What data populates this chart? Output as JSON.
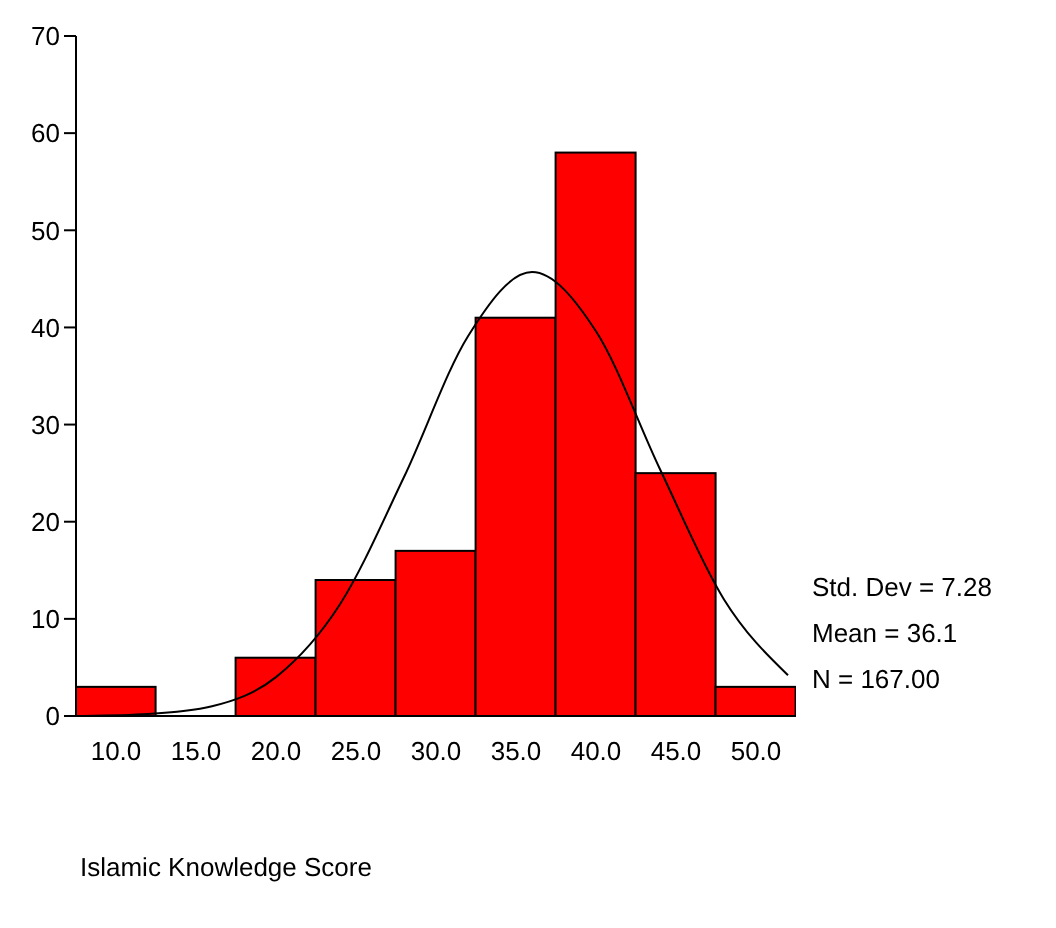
{
  "chart_data": {
    "type": "histogram",
    "xlabel": "Islamic Knowledge Score",
    "bins": [
      7.5,
      12.5,
      17.5,
      22.5,
      27.5,
      32.5,
      37.5,
      42.5,
      47.5,
      52.5
    ],
    "values": [
      3,
      0,
      6,
      14,
      17,
      41,
      58,
      25,
      3
    ],
    "color": "#ff0000",
    "series": [
      {
        "type": "line",
        "color": "#000000",
        "x": [
          8,
          12,
          16,
          20,
          24,
          28,
          32,
          36,
          40,
          44,
          48,
          52
        ],
        "values": [
          0,
          0.2,
          1.0,
          4.0,
          11.5,
          24.6,
          39.1,
          45.7,
          39.6,
          25.4,
          12.0,
          4.2
        ]
      }
    ],
    "xlim": [
      7.5,
      52.5
    ],
    "xticks": [
      {
        "value": 10,
        "label": "10.0"
      },
      {
        "value": 15,
        "label": "15.0"
      },
      {
        "value": 20,
        "label": "20.0"
      },
      {
        "value": 25,
        "label": "25.0"
      },
      {
        "value": 30,
        "label": "30.0"
      },
      {
        "value": 35,
        "label": "35.0"
      },
      {
        "value": 40,
        "label": "40.0"
      },
      {
        "value": 45,
        "label": "45.0"
      },
      {
        "value": 50,
        "label": "50.0"
      }
    ],
    "ylim": [
      0,
      70
    ],
    "yticks": [
      0,
      10,
      20,
      30,
      40,
      50,
      60,
      70
    ],
    "grid": false,
    "legend": false,
    "annotations": [
      "Std. Dev = 7.28",
      "Mean = 36.1",
      "N = 167.00"
    ]
  }
}
